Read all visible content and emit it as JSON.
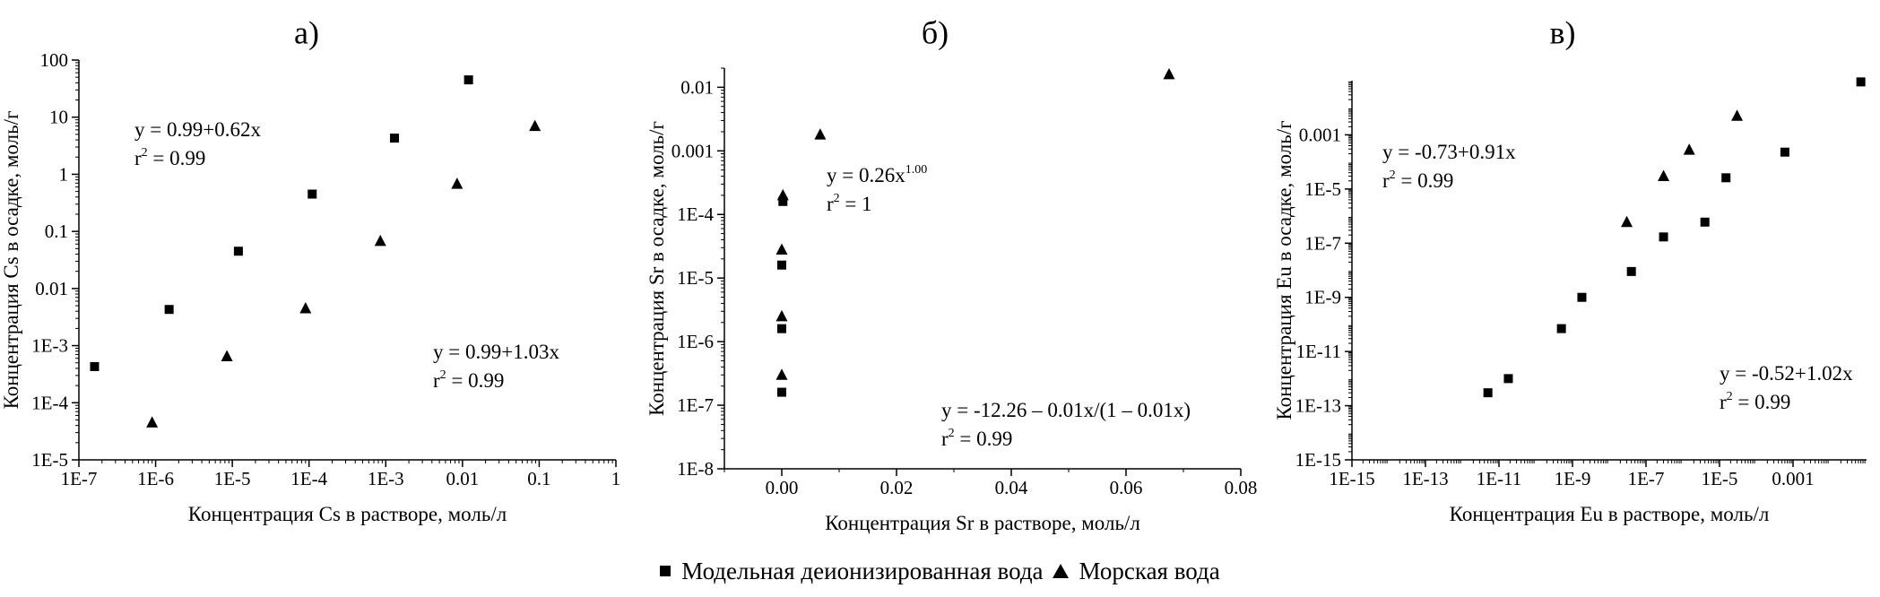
{
  "legend": {
    "items": [
      {
        "name": "Модельная деионизированная вода",
        "marker": "square"
      },
      {
        "name": "Морская вода",
        "marker": "triangle"
      }
    ]
  },
  "chart_data": [
    {
      "type": "scatter",
      "panel_label": "а)",
      "xlabel": "Концентрация Cs в растворе, моль/л",
      "ylabel": "Концентрация Cs в осадке, моль/г",
      "xscale": "log",
      "yscale": "log",
      "xlim": [
        1e-07,
        1
      ],
      "ylim": [
        1e-05,
        100
      ],
      "xticks": [
        1e-07,
        1e-06,
        1e-05,
        0.0001,
        0.001,
        0.01,
        0.1,
        1
      ],
      "xtick_labels": [
        "1E-7",
        "1E-6",
        "1E-5",
        "1E-4",
        "1E-3",
        "0.01",
        "0.1",
        "1"
      ],
      "yticks": [
        1e-05,
        0.0001,
        0.001,
        0.01,
        0.1,
        1,
        10,
        100
      ],
      "ytick_labels": [
        "1E-5",
        "1E-4",
        "1E-3",
        "0.01",
        "0.1",
        "1",
        "10",
        "100"
      ],
      "series": [
        {
          "name": "Модельная деионизированная вода",
          "marker": "square",
          "x": [
            1.6e-07,
            1.5e-06,
            1.2e-05,
            0.00011,
            0.0013,
            0.012
          ],
          "y": [
            0.00043,
            0.0043,
            0.045,
            0.45,
            4.3,
            45
          ]
        },
        {
          "name": "Морская вода",
          "marker": "triangle",
          "x": [
            9e-07,
            8.5e-06,
            9e-05,
            0.00085,
            0.0085,
            0.088
          ],
          "y": [
            4.5e-05,
            0.00065,
            0.0045,
            0.068,
            0.68,
            7
          ]
        }
      ],
      "annotations": [
        {
          "lines": [
            {
              "text": "y = 0.99+0.62x"
            },
            {
              "text": "r",
              "sup": "2",
              "rest": " = 0.99"
            }
          ]
        },
        {
          "lines": [
            {
              "text": "y = 0.99+1.03x"
            },
            {
              "text": "r",
              "sup": "2",
              "rest": " = 0.99"
            }
          ]
        }
      ]
    },
    {
      "type": "scatter",
      "panel_label": "б)",
      "xlabel": "Концентрация Sr в растворе, моль/л",
      "ylabel": "Концентрация Sr в осадке, моль/г",
      "xscale": "linear",
      "yscale": "log",
      "xlim": [
        -0.01,
        0.08
      ],
      "ylim": [
        1e-08,
        0.02
      ],
      "xticks": [
        0,
        0.02,
        0.04,
        0.06,
        0.08
      ],
      "xtick_labels": [
        "0.00",
        "0.02",
        "0.04",
        "0.06",
        "0.08"
      ],
      "yticks": [
        1e-08,
        1e-07,
        1e-06,
        1e-05,
        0.0001,
        0.001,
        0.01
      ],
      "ytick_labels": [
        "1E-8",
        "1E-7",
        "1E-6",
        "1E-5",
        "1E-4",
        "0.001",
        "0.01"
      ],
      "series": [
        {
          "name": "Модельная деионизированная вода",
          "marker": "square",
          "x": [
            0,
            0,
            0,
            0.0002
          ],
          "y": [
            1.6e-07,
            1.6e-06,
            1.6e-05,
            0.00016
          ]
        },
        {
          "name": "Морская вода",
          "marker": "triangle",
          "x": [
            0,
            0,
            0,
            0.0002,
            0.0067,
            0.0675
          ],
          "y": [
            3e-07,
            2.5e-06,
            2.8e-05,
            0.0002,
            0.0018,
            0.016
          ]
        }
      ],
      "annotations": [
        {
          "lines": [
            {
              "text": "y = 0.26x",
              "sup": "1.00"
            },
            {
              "text": "r",
              "sup": "2",
              "rest": " = 1"
            }
          ]
        },
        {
          "lines": [
            {
              "text": "y = -12.26 – 0.01x/(1 – 0.01x)"
            },
            {
              "text": "r",
              "sup": "2",
              "rest": " = 0.99"
            }
          ]
        }
      ]
    },
    {
      "type": "scatter",
      "panel_label": "в)",
      "xlabel": "Концентрация Eu в растворе, моль/л",
      "ylabel": "Концентрация Eu в осадке, моль/г",
      "xscale": "log",
      "yscale": "log",
      "xlim": [
        1e-15,
        0.1
      ],
      "ylim": [
        1e-15,
        0.1
      ],
      "xticks": [
        1e-15,
        1e-13,
        1e-11,
        1e-09,
        1e-07,
        1e-05,
        0.001
      ],
      "xtick_labels": [
        "1E-15",
        "1E-13",
        "1E-11",
        "1E-9",
        "1E-7",
        "1E-5",
        "0.001"
      ],
      "yticks": [
        1e-15,
        1e-13,
        1e-11,
        1e-09,
        1e-07,
        1e-05,
        0.001
      ],
      "ytick_labels": [
        "1E-15",
        "1E-13",
        "1E-11",
        "1E-9",
        "1E-7",
        "1E-5",
        "0.001"
      ],
      "series": [
        {
          "name": "Модельная деионизированная вода",
          "marker": "square",
          "x": [
            5e-12,
            1.8e-11,
            5e-10,
            1.8e-09,
            4e-08,
            3e-07,
            4e-06,
            1.5e-05,
            0.0006,
            0.07
          ],
          "y": [
            3e-13,
            1e-12,
            7e-11,
            1e-09,
            9e-09,
            1.7e-07,
            6e-07,
            2.6e-05,
            0.00023,
            0.09
          ]
        },
        {
          "name": "Морская вода",
          "marker": "triangle",
          "x": [
            3e-08,
            3e-07,
            1.5e-06,
            3e-05
          ],
          "y": [
            6e-07,
            3e-05,
            0.00028,
            0.005
          ]
        }
      ],
      "annotations": [
        {
          "lines": [
            {
              "text": "y = -0.73+0.91x"
            },
            {
              "text": "r",
              "sup": "2",
              "rest": " = 0.99"
            }
          ]
        },
        {
          "lines": [
            {
              "text": "y = -0.52+1.02x"
            },
            {
              "text": "r",
              "sup": "2",
              "rest": " = 0.99"
            }
          ]
        }
      ]
    }
  ]
}
